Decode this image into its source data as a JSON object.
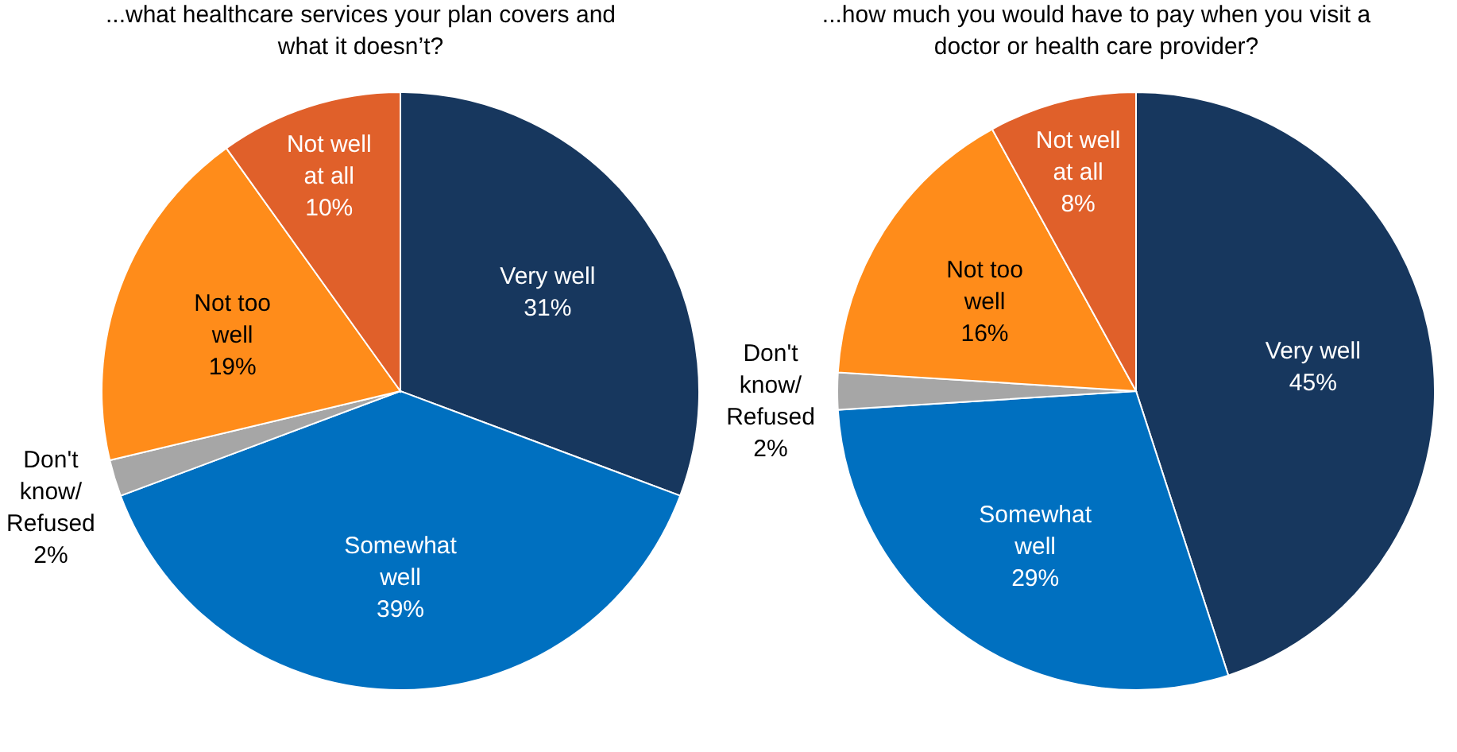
{
  "chart_data": [
    {
      "type": "pie",
      "title": "...what healthcare services your plan covers and what it doesn’t?",
      "categories": [
        "Very well",
        "Somewhat well",
        "Don't know/ Refused",
        "Not too well",
        "Not well at all"
      ],
      "values": [
        31,
        39,
        2,
        19,
        10
      ],
      "value_labels": [
        "31%",
        "39%",
        "2%",
        "19%",
        "10%"
      ],
      "colors": [
        "#17375e",
        "#0070c0",
        "#a6a6a6",
        "#ff8c1a",
        "#e0602a"
      ],
      "legend": false
    },
    {
      "type": "pie",
      "title": "...how much you would have to pay when you visit a doctor or health care provider?",
      "categories": [
        "Very well",
        "Somewhat well",
        "Don't know/ Refused",
        "Not too well",
        "Not well at all"
      ],
      "values": [
        45,
        29,
        2,
        16,
        8
      ],
      "value_labels": [
        "45%",
        "29%",
        "2%",
        "16%",
        "8%"
      ],
      "colors": [
        "#17375e",
        "#0070c0",
        "#a6a6a6",
        "#ff8c1a",
        "#e0602a"
      ],
      "legend": false
    }
  ]
}
